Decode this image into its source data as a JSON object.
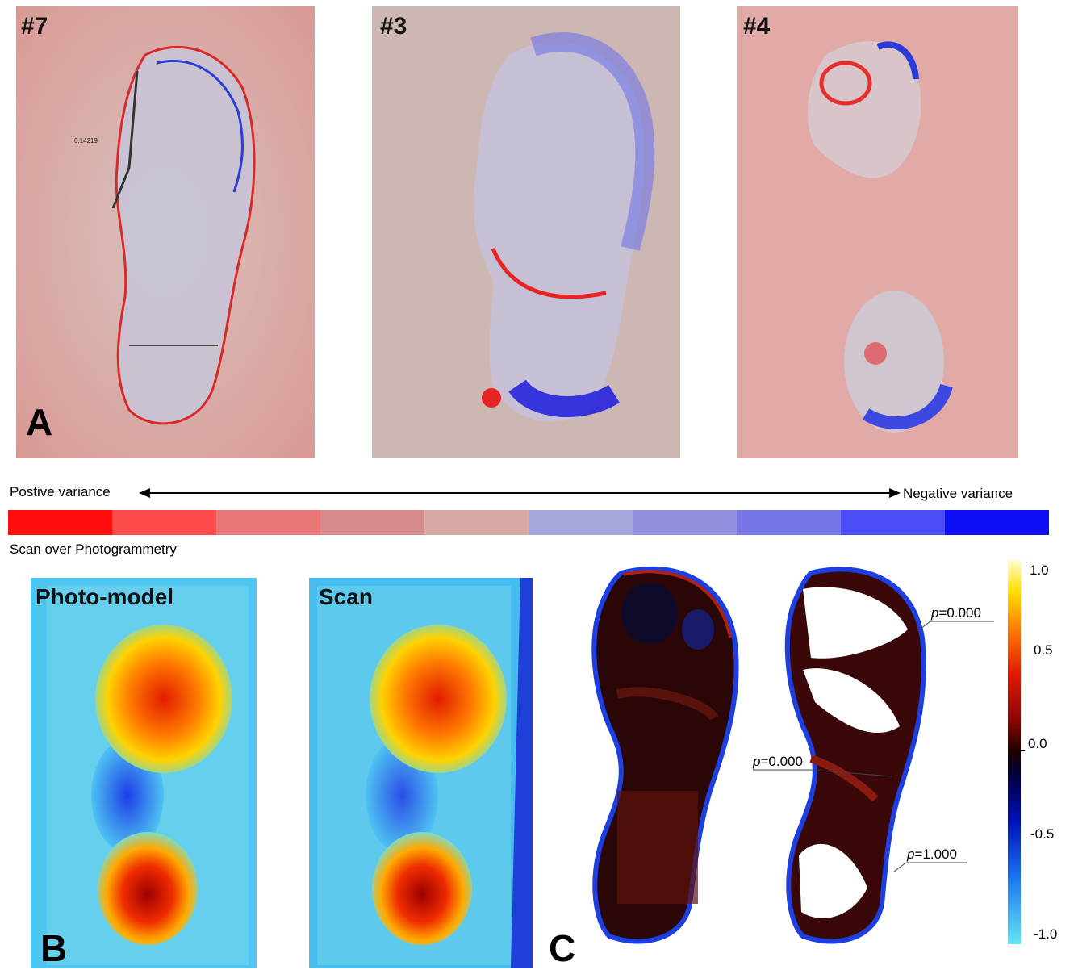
{
  "panel_a": {
    "letter": "A",
    "images": [
      {
        "label": "#7"
      },
      {
        "label": "#3"
      },
      {
        "label": "#4"
      }
    ]
  },
  "variance_scale": {
    "left_label": "Postive variance",
    "right_label": "Negative variance",
    "caption": "Scan over Photogrammetry",
    "swatches": [
      "#ff0d0d",
      "#fd4a4a",
      "#e97676",
      "#d58b8b",
      "#d8aaa6",
      "#a8a7db",
      "#928fde",
      "#7676e6",
      "#4c4cf7",
      "#0f0ff5"
    ]
  },
  "panel_b": {
    "letter": "B",
    "images": [
      {
        "label": "Photo-model"
      },
      {
        "label": "Scan"
      }
    ]
  },
  "panel_c": {
    "letter": "C",
    "annotations": [
      {
        "prefix": "p",
        "value": "=0.000"
      },
      {
        "prefix": "p",
        "value": "=0.000"
      },
      {
        "prefix": "p",
        "value": "=1.000"
      }
    ],
    "colorbar_ticks": [
      "1.0",
      "0.5",
      "0.0",
      "-0.5",
      "-1.0"
    ]
  },
  "annotation_small": "0.14219"
}
